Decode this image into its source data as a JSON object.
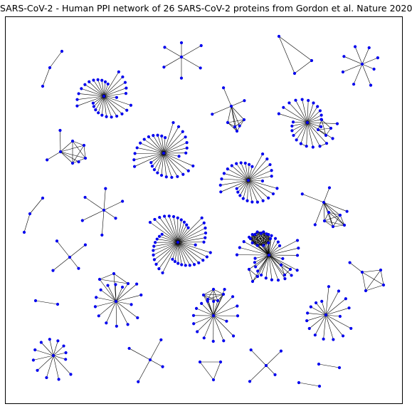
{
  "title": "SARS-CoV-2 - Human PPI network of 26 SARS-CoV-2 proteins from Gordon et al. Nature 2020",
  "colors": {
    "node": "#0000ee",
    "edge": "#000000",
    "frame": "#000000"
  }
}
